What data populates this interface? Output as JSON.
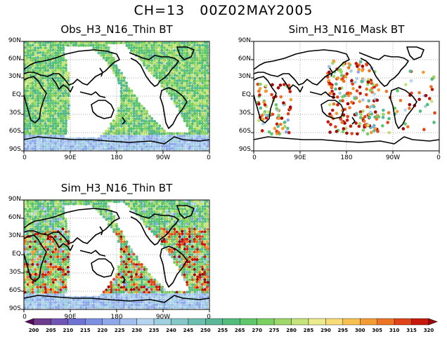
{
  "figure": {
    "title": "CH=13   00Z02MAY2005"
  },
  "panels": [
    {
      "id": "obs",
      "title": "Obs_H3_N16_Thin BT",
      "lat_ticks": [
        "90N",
        "60N",
        "30N",
        "EQ",
        "30S",
        "60S",
        "90S"
      ],
      "lon_ticks": [
        "0",
        "90E",
        "180",
        "90W",
        "0"
      ],
      "mode": "dense"
    },
    {
      "id": "mask",
      "title": "Sim_H3_N16_Mask BT",
      "lat_ticks": [
        "90N",
        "60N",
        "30N",
        "EQ",
        "30S",
        "60S",
        "90S"
      ],
      "lon_ticks": [
        "0",
        "90E",
        "180",
        "90W",
        "0"
      ],
      "mode": "sparse"
    },
    {
      "id": "sim",
      "title": "Sim_H3_N16_Thin BT",
      "lat_ticks": [
        "90N",
        "60N",
        "30N",
        "EQ",
        "30S",
        "60S",
        "90S"
      ],
      "lon_ticks": [
        "0",
        "90E",
        "180",
        "90W",
        "0"
      ],
      "mode": "dense-hot"
    }
  ],
  "colorbar": {
    "labels": [
      "200",
      "205",
      "210",
      "215",
      "220",
      "225",
      "230",
      "235",
      "240",
      "245",
      "250",
      "255",
      "265",
      "270",
      "275",
      "280",
      "285",
      "290",
      "295",
      "300",
      "305",
      "310",
      "315",
      "320"
    ],
    "colors": [
      "#5a0a5a",
      "#6e3a8c",
      "#6f56b4",
      "#6f72d2",
      "#7c8fe0",
      "#8ea8ea",
      "#a2c0ee",
      "#b4d4f0",
      "#9ed0e0",
      "#84c8c8",
      "#6cc0b0",
      "#5ab898",
      "#52bc7c",
      "#5ec86a",
      "#7ad060",
      "#9ed86a",
      "#c6e47c",
      "#ecec8c",
      "#f8dc78",
      "#f8c050",
      "#f49c34",
      "#ec7424",
      "#e04418",
      "#c8180c",
      "#a00808"
    ]
  }
}
